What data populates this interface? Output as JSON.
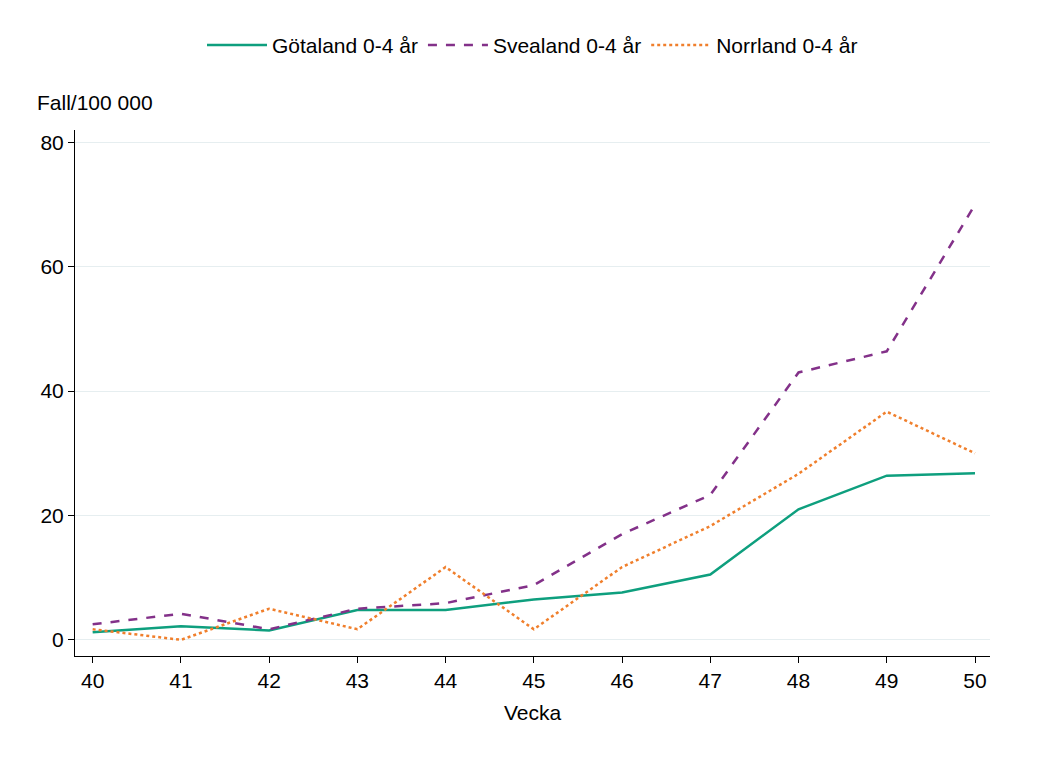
{
  "chart_data": {
    "type": "line",
    "x_label": "Vecka",
    "y_label": "Fall/100 000",
    "x": [
      40,
      41,
      42,
      43,
      44,
      45,
      46,
      47,
      48,
      49,
      50
    ],
    "series": [
      {
        "name": "Götaland 0-4 år",
        "color": "#0e9f7e",
        "line_style": "solid",
        "values": [
          1.2,
          2.2,
          1.5,
          4.8,
          4.8,
          6.5,
          7.6,
          10.5,
          21.0,
          26.4,
          26.8
        ]
      },
      {
        "name": "Svealand 0-4 år",
        "color": "#833189",
        "line_style": "dash",
        "values": [
          2.5,
          4.2,
          1.7,
          5.0,
          5.9,
          8.8,
          17.0,
          23.3,
          43.0,
          46.4,
          70.0
        ]
      },
      {
        "name": "Norrland 0-4 år",
        "color": "#f07f2c",
        "line_style": "dot",
        "values": [
          1.7,
          0.0,
          5.0,
          1.7,
          11.7,
          1.7,
          11.7,
          18.3,
          26.7,
          36.7,
          30.0
        ]
      }
    ],
    "xlim": [
      39.8,
      50.17
    ],
    "xticks": [
      40,
      41,
      42,
      43,
      44,
      45,
      46,
      47,
      48,
      49,
      50
    ],
    "ylim": [
      -2.6,
      82
    ],
    "yticks": [
      0,
      20,
      40,
      60,
      80
    ],
    "grid": true,
    "legend": "top"
  }
}
